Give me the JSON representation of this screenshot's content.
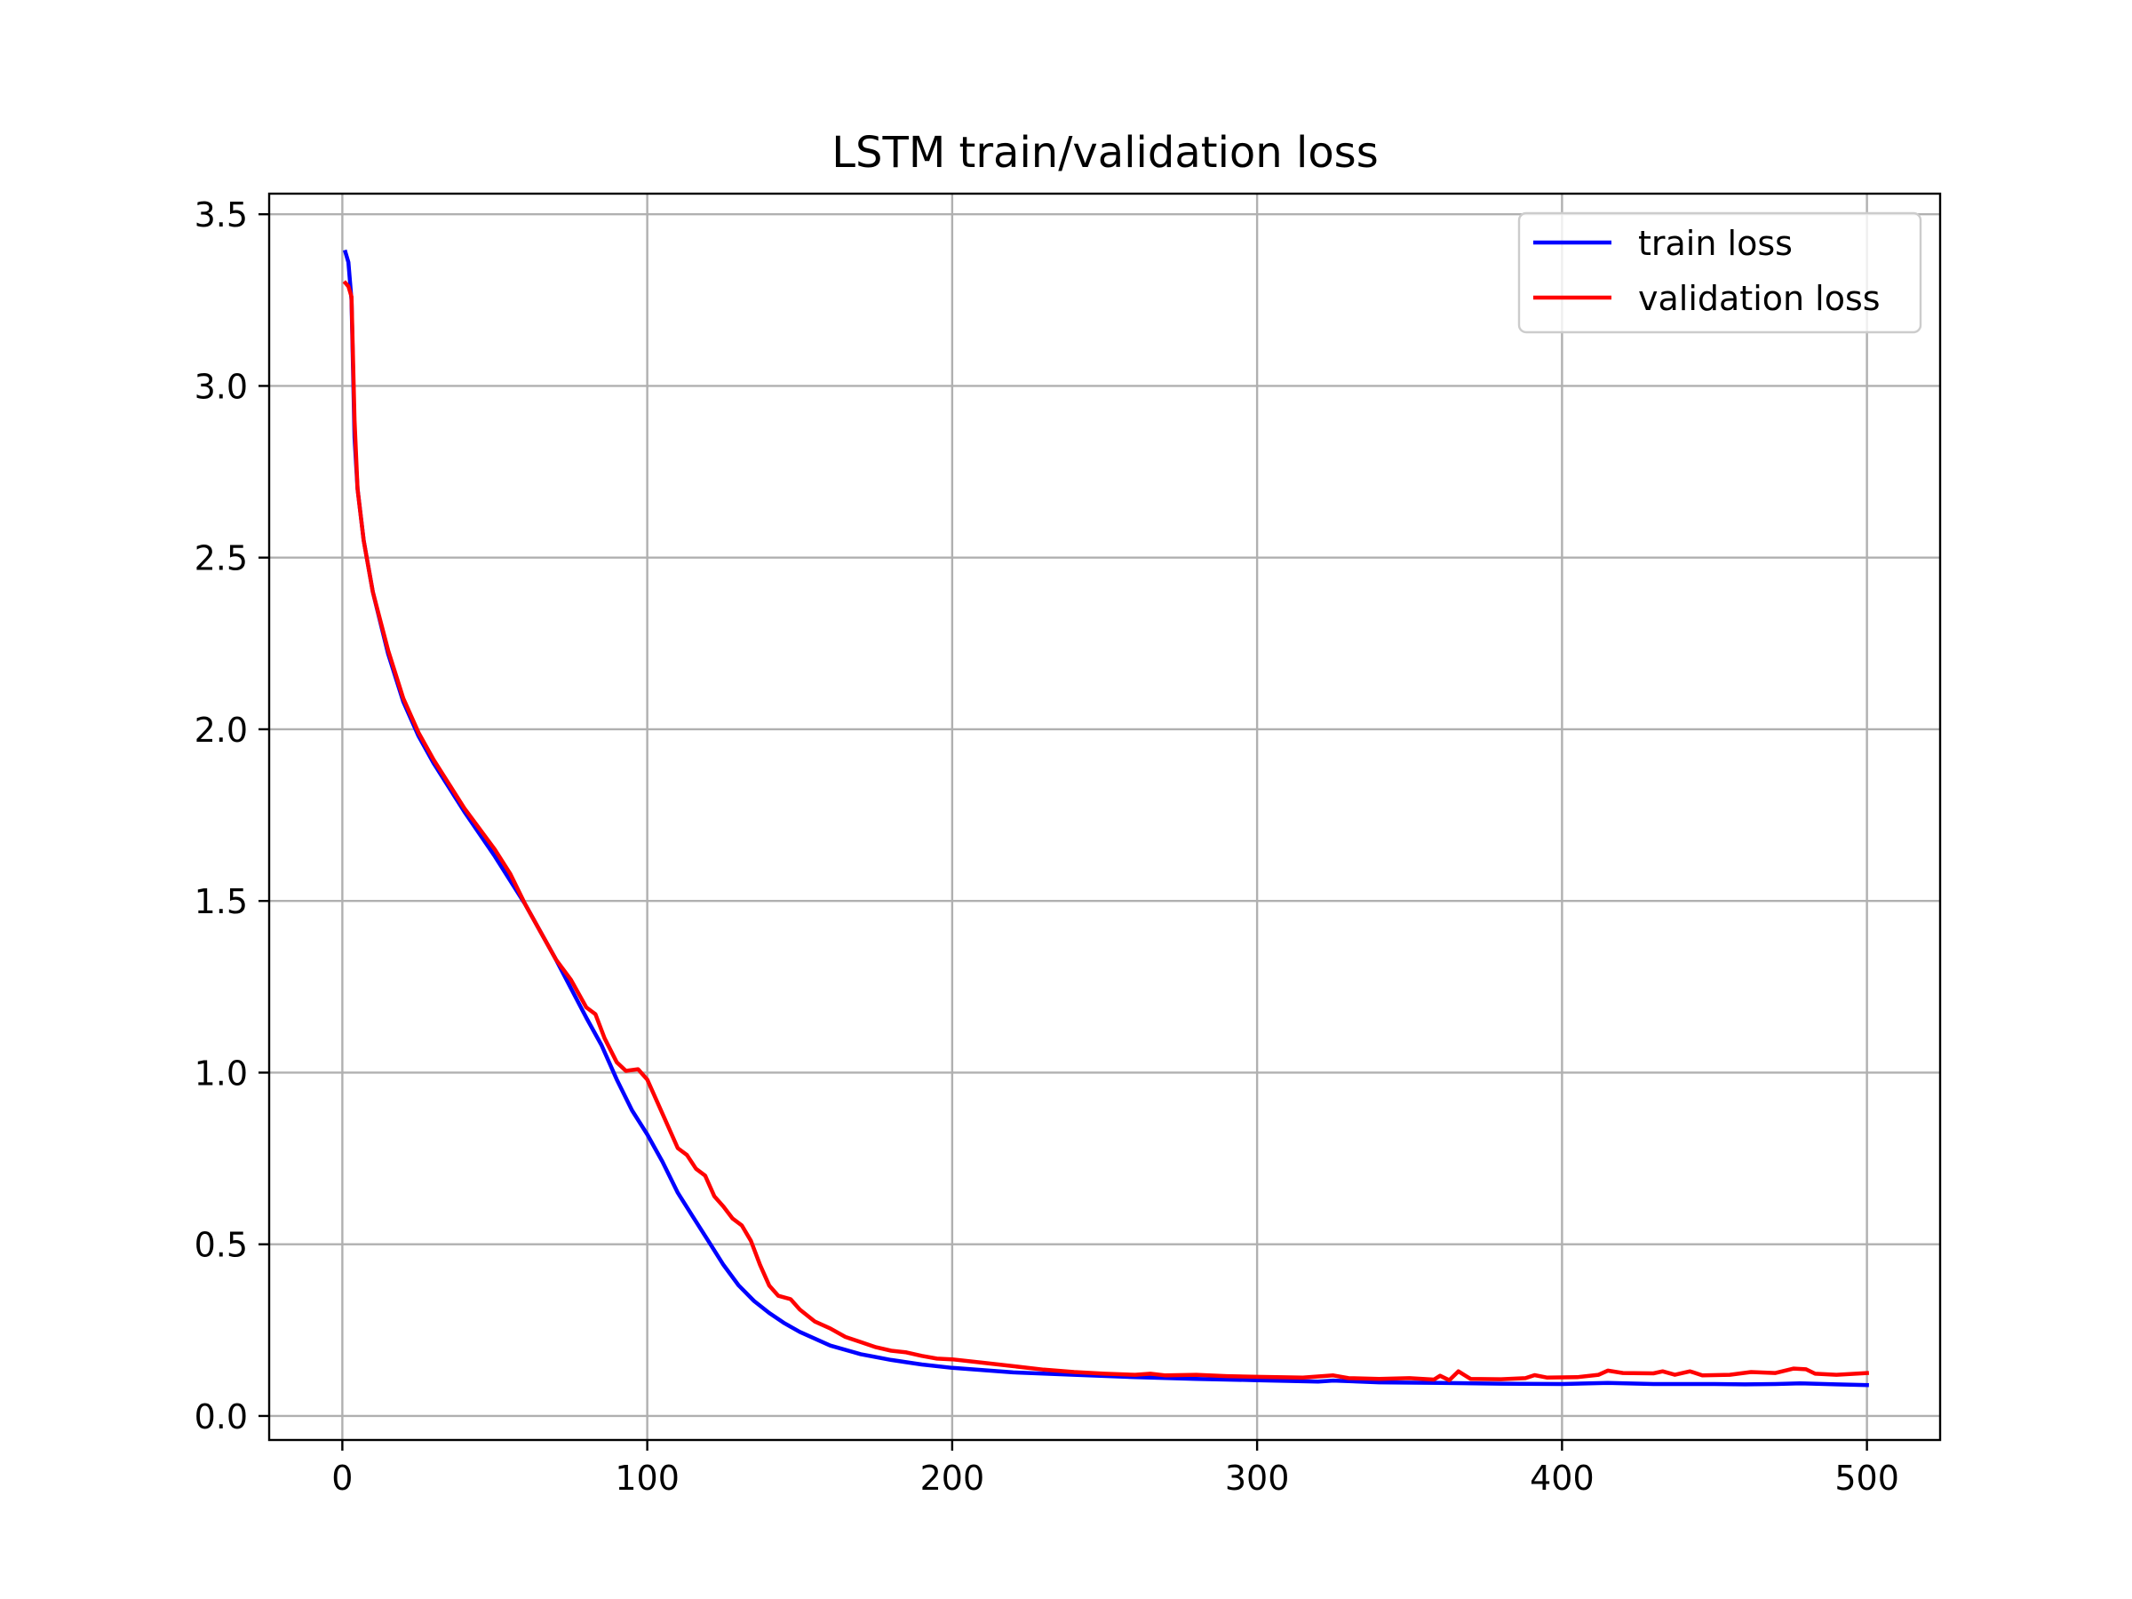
{
  "chart_data": {
    "type": "line",
    "title": "LSTM train/validation loss",
    "xlabel": "",
    "ylabel": "",
    "xlim": [
      -24,
      524
    ],
    "ylim": [
      -0.07,
      3.56
    ],
    "x_ticks": [
      0,
      100,
      200,
      300,
      400,
      500
    ],
    "x_tick_labels": [
      "0",
      "100",
      "200",
      "300",
      "400",
      "500"
    ],
    "y_ticks": [
      0.0,
      0.5,
      1.0,
      1.5,
      2.0,
      2.5,
      3.0,
      3.5
    ],
    "y_tick_labels": [
      "0.0",
      "0.5",
      "1.0",
      "1.5",
      "2.0",
      "2.5",
      "3.0",
      "3.5"
    ],
    "grid": true,
    "legend_position": "top-right",
    "series": [
      {
        "name": "train loss",
        "color": "#0000ff",
        "points": [
          [
            1,
            3.39
          ],
          [
            2,
            3.36
          ],
          [
            3,
            3.25
          ],
          [
            4,
            2.85
          ],
          [
            5,
            2.7
          ],
          [
            7,
            2.55
          ],
          [
            10,
            2.4
          ],
          [
            15,
            2.22
          ],
          [
            20,
            2.08
          ],
          [
            25,
            1.98
          ],
          [
            30,
            1.9
          ],
          [
            40,
            1.76
          ],
          [
            50,
            1.63
          ],
          [
            60,
            1.49
          ],
          [
            70,
            1.33
          ],
          [
            80,
            1.16
          ],
          [
            85,
            1.08
          ],
          [
            90,
            0.98
          ],
          [
            95,
            0.89
          ],
          [
            100,
            0.82
          ],
          [
            105,
            0.74
          ],
          [
            110,
            0.65
          ],
          [
            115,
            0.58
          ],
          [
            120,
            0.51
          ],
          [
            125,
            0.44
          ],
          [
            130,
            0.38
          ],
          [
            135,
            0.335
          ],
          [
            140,
            0.3
          ],
          [
            145,
            0.27
          ],
          [
            150,
            0.245
          ],
          [
            160,
            0.205
          ],
          [
            170,
            0.18
          ],
          [
            180,
            0.163
          ],
          [
            190,
            0.15
          ],
          [
            200,
            0.14
          ],
          [
            220,
            0.127
          ],
          [
            240,
            0.12
          ],
          [
            260,
            0.113
          ],
          [
            280,
            0.108
          ],
          [
            300,
            0.104
          ],
          [
            320,
            0.1
          ],
          [
            325,
            0.103
          ],
          [
            340,
            0.098
          ],
          [
            360,
            0.096
          ],
          [
            380,
            0.094
          ],
          [
            400,
            0.093
          ],
          [
            415,
            0.096
          ],
          [
            430,
            0.093
          ],
          [
            450,
            0.093
          ],
          [
            460,
            0.092
          ],
          [
            470,
            0.093
          ],
          [
            478,
            0.095
          ],
          [
            490,
            0.092
          ],
          [
            500,
            0.09
          ]
        ]
      },
      {
        "name": "validation loss",
        "color": "#ff0000",
        "points": [
          [
            1,
            3.3
          ],
          [
            2,
            3.29
          ],
          [
            3,
            3.26
          ],
          [
            4,
            2.9
          ],
          [
            5,
            2.7
          ],
          [
            7,
            2.55
          ],
          [
            10,
            2.4
          ],
          [
            15,
            2.23
          ],
          [
            20,
            2.09
          ],
          [
            25,
            1.99
          ],
          [
            30,
            1.91
          ],
          [
            40,
            1.77
          ],
          [
            50,
            1.65
          ],
          [
            55,
            1.58
          ],
          [
            60,
            1.49
          ],
          [
            65,
            1.41
          ],
          [
            70,
            1.33
          ],
          [
            75,
            1.27
          ],
          [
            80,
            1.19
          ],
          [
            83,
            1.17
          ],
          [
            86,
            1.1
          ],
          [
            90,
            1.03
          ],
          [
            93,
            1.005
          ],
          [
            97,
            1.01
          ],
          [
            100,
            0.98
          ],
          [
            105,
            0.88
          ],
          [
            110,
            0.78
          ],
          [
            113,
            0.76
          ],
          [
            116,
            0.72
          ],
          [
            119,
            0.7
          ],
          [
            122,
            0.64
          ],
          [
            125,
            0.61
          ],
          [
            128,
            0.575
          ],
          [
            131,
            0.555
          ],
          [
            134,
            0.51
          ],
          [
            137,
            0.44
          ],
          [
            140,
            0.38
          ],
          [
            143,
            0.35
          ],
          [
            147,
            0.34
          ],
          [
            150,
            0.31
          ],
          [
            155,
            0.275
          ],
          [
            160,
            0.255
          ],
          [
            165,
            0.23
          ],
          [
            170,
            0.215
          ],
          [
            175,
            0.2
          ],
          [
            180,
            0.19
          ],
          [
            185,
            0.185
          ],
          [
            190,
            0.175
          ],
          [
            195,
            0.167
          ],
          [
            200,
            0.165
          ],
          [
            210,
            0.155
          ],
          [
            220,
            0.145
          ],
          [
            230,
            0.135
          ],
          [
            240,
            0.128
          ],
          [
            250,
            0.123
          ],
          [
            260,
            0.12
          ],
          [
            265,
            0.123
          ],
          [
            270,
            0.118
          ],
          [
            280,
            0.12
          ],
          [
            290,
            0.116
          ],
          [
            300,
            0.114
          ],
          [
            315,
            0.112
          ],
          [
            325,
            0.118
          ],
          [
            330,
            0.11
          ],
          [
            340,
            0.108
          ],
          [
            350,
            0.11
          ],
          [
            358,
            0.106
          ],
          [
            360,
            0.117
          ],
          [
            363,
            0.104
          ],
          [
            366,
            0.13
          ],
          [
            370,
            0.108
          ],
          [
            380,
            0.107
          ],
          [
            388,
            0.11
          ],
          [
            391,
            0.119
          ],
          [
            395,
            0.112
          ],
          [
            405,
            0.113
          ],
          [
            412,
            0.12
          ],
          [
            415,
            0.132
          ],
          [
            420,
            0.125
          ],
          [
            430,
            0.124
          ],
          [
            433,
            0.13
          ],
          [
            437,
            0.12
          ],
          [
            442,
            0.13
          ],
          [
            446,
            0.118
          ],
          [
            455,
            0.12
          ],
          [
            462,
            0.128
          ],
          [
            470,
            0.125
          ],
          [
            476,
            0.138
          ],
          [
            480,
            0.136
          ],
          [
            483,
            0.123
          ],
          [
            490,
            0.12
          ],
          [
            500,
            0.125
          ]
        ]
      }
    ]
  }
}
